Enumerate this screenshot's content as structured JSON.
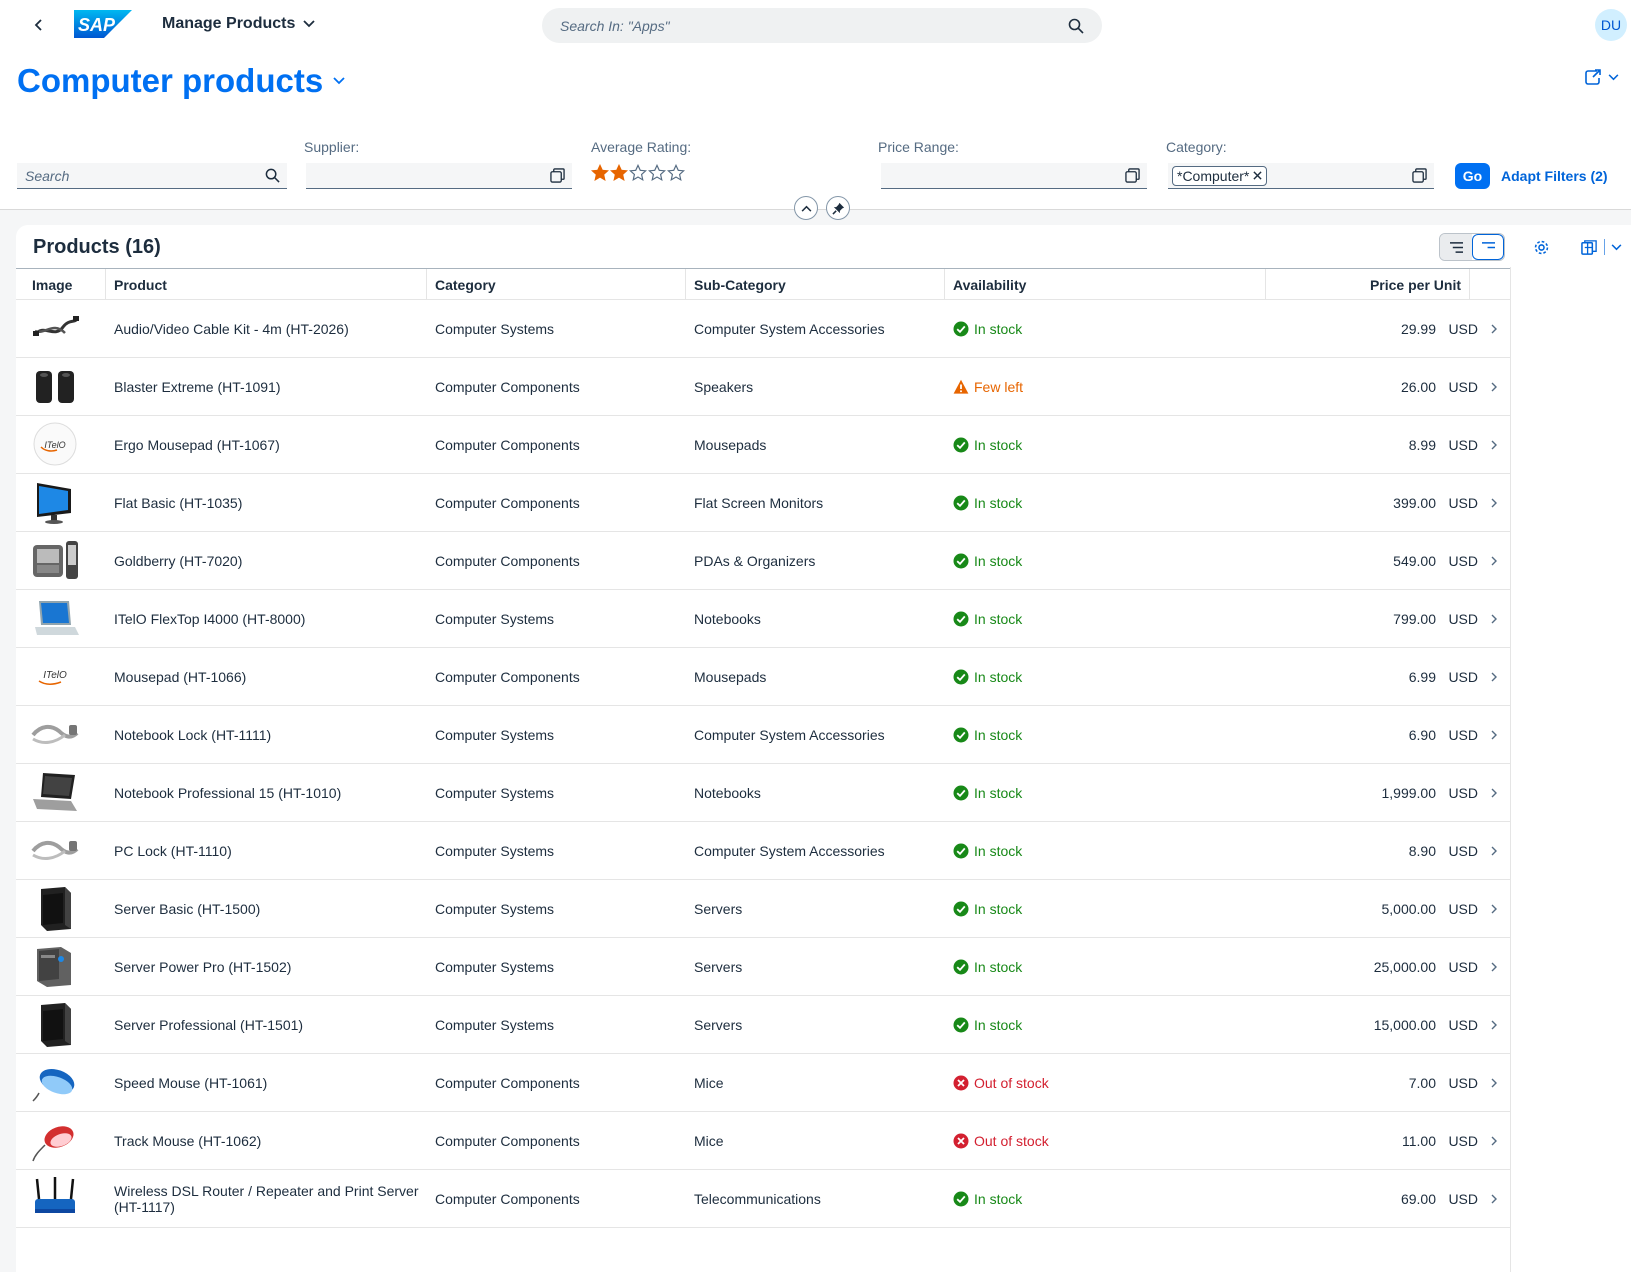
{
  "shell": {
    "app_title": "Manage Products",
    "search_placeholder": "Search In: \"Apps\"",
    "avatar_initials": "DU",
    "logo_text": "SAP"
  },
  "header": {
    "title": "Computer products",
    "filters": {
      "search_placeholder": "Search",
      "supplier_label": "Supplier:",
      "rating_label": "Average Rating:",
      "rating_value": 2,
      "rating_max": 5,
      "price_label": "Price Range:",
      "category_label": "Category:",
      "category_token": "*Computer*",
      "go_label": "Go",
      "adapt_label": "Adapt Filters (2)"
    }
  },
  "table": {
    "title": "Products (16)",
    "columns": [
      "Image",
      "Product",
      "Category",
      "Sub-Category",
      "Availability",
      "Price per Unit"
    ],
    "rows": [
      {
        "image": "cable-icon",
        "product": "Audio/Video Cable Kit - 4m (HT-2026)",
        "category": "Computer Systems",
        "subcategory": "Computer System Accessories",
        "availability": "In stock",
        "status": "success",
        "price": "29.99",
        "currency": "USD"
      },
      {
        "image": "speakers-icon",
        "product": "Blaster Extreme (HT-1091)",
        "category": "Computer Components",
        "subcategory": "Speakers",
        "availability": "Few left",
        "status": "warning",
        "price": "26.00",
        "currency": "USD"
      },
      {
        "image": "mousepad-round-icon",
        "product": "Ergo Mousepad (HT-1067)",
        "category": "Computer Components",
        "subcategory": "Mousepads",
        "availability": "In stock",
        "status": "success",
        "price": "8.99",
        "currency": "USD"
      },
      {
        "image": "monitor-icon",
        "product": "Flat Basic (HT-1035)",
        "category": "Computer Components",
        "subcategory": "Flat Screen Monitors",
        "availability": "In stock",
        "status": "success",
        "price": "399.00",
        "currency": "USD"
      },
      {
        "image": "pda-icon",
        "product": "Goldberry (HT-7020)",
        "category": "Computer Components",
        "subcategory": "PDAs & Organizers",
        "availability": "In stock",
        "status": "success",
        "price": "549.00",
        "currency": "USD"
      },
      {
        "image": "laptop-blue-icon",
        "product": "ITelO FlexTop I4000 (HT-8000)",
        "category": "Computer Systems",
        "subcategory": "Notebooks",
        "availability": "In stock",
        "status": "success",
        "price": "799.00",
        "currency": "USD"
      },
      {
        "image": "mousepad-icon",
        "product": "Mousepad (HT-1066)",
        "category": "Computer Components",
        "subcategory": "Mousepads",
        "availability": "In stock",
        "status": "success",
        "price": "6.99",
        "currency": "USD"
      },
      {
        "image": "lock-cable-icon",
        "product": "Notebook Lock (HT-1111)",
        "category": "Computer Systems",
        "subcategory": "Computer System Accessories",
        "availability": "In stock",
        "status": "success",
        "price": "6.90",
        "currency": "USD"
      },
      {
        "image": "laptop-icon",
        "product": "Notebook Professional 15 (HT-1010)",
        "category": "Computer Systems",
        "subcategory": "Notebooks",
        "availability": "In stock",
        "status": "success",
        "price": "1,999.00",
        "currency": "USD"
      },
      {
        "image": "lock-cable-icon",
        "product": "PC Lock (HT-1110)",
        "category": "Computer Systems",
        "subcategory": "Computer System Accessories",
        "availability": "In stock",
        "status": "success",
        "price": "8.90",
        "currency": "USD"
      },
      {
        "image": "server-icon",
        "product": "Server Basic (HT-1500)",
        "category": "Computer Systems",
        "subcategory": "Servers",
        "availability": "In stock",
        "status": "success",
        "price": "5,000.00",
        "currency": "USD"
      },
      {
        "image": "server-pro-icon",
        "product": "Server Power Pro (HT-1502)",
        "category": "Computer Systems",
        "subcategory": "Servers",
        "availability": "In stock",
        "status": "success",
        "price": "25,000.00",
        "currency": "USD"
      },
      {
        "image": "server-icon",
        "product": "Server Professional (HT-1501)",
        "category": "Computer Systems",
        "subcategory": "Servers",
        "availability": "In stock",
        "status": "success",
        "price": "15,000.00",
        "currency": "USD"
      },
      {
        "image": "mouse-blue-icon",
        "product": "Speed Mouse (HT-1061)",
        "category": "Computer Components",
        "subcategory": "Mice",
        "availability": "Out of stock",
        "status": "error",
        "price": "7.00",
        "currency": "USD"
      },
      {
        "image": "mouse-red-icon",
        "product": "Track Mouse (HT-1062)",
        "category": "Computer Components",
        "subcategory": "Mice",
        "availability": "Out of stock",
        "status": "error",
        "price": "11.00",
        "currency": "USD"
      },
      {
        "image": "router-icon",
        "product": "Wireless DSL Router / Repeater and Print Server (HT-1117)",
        "category": "Computer Components",
        "subcategory": "Telecommunications",
        "availability": "In stock",
        "status": "success",
        "price": "69.00",
        "currency": "USD"
      }
    ]
  },
  "colors": {
    "brand": "#0070f2",
    "success": "#188918",
    "warning": "#e76500",
    "error": "#d32030",
    "star": "#e76500"
  }
}
